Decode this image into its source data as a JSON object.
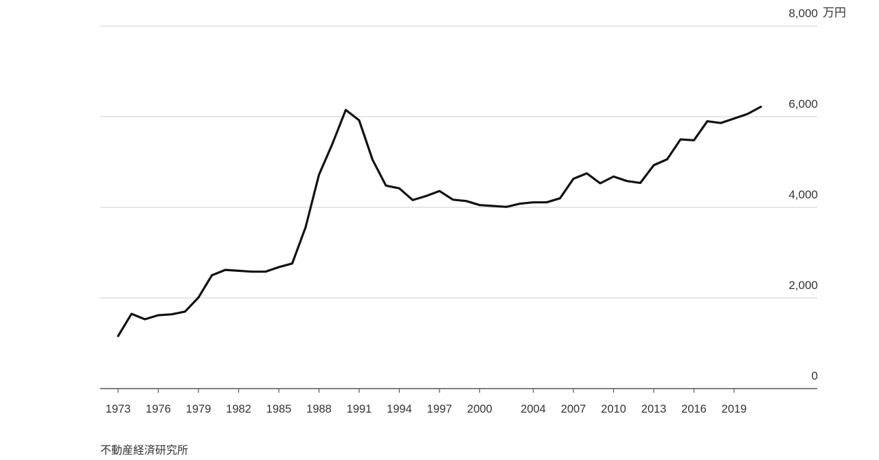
{
  "chart_data": {
    "type": "line",
    "unit_label": "万円",
    "source": "不動産経済研究所",
    "grid": true,
    "ylim": [
      0,
      8000
    ],
    "y_ticks": [
      {
        "value": 0,
        "label": "0"
      },
      {
        "value": 2000,
        "label": "2,000"
      },
      {
        "value": 4000,
        "label": "4,000"
      },
      {
        "value": 6000,
        "label": "6,000"
      },
      {
        "value": 8000,
        "label": "8,000"
      }
    ],
    "x_ticks": [
      {
        "value": 1973,
        "label": "1973"
      },
      {
        "value": 1976,
        "label": "1976"
      },
      {
        "value": 1979,
        "label": "1979"
      },
      {
        "value": 1982,
        "label": "1982"
      },
      {
        "value": 1985,
        "label": "1985"
      },
      {
        "value": 1988,
        "label": "1988"
      },
      {
        "value": 1991,
        "label": "1991"
      },
      {
        "value": 1994,
        "label": "1994"
      },
      {
        "value": 1997,
        "label": "1997"
      },
      {
        "value": 2000,
        "label": "2000"
      },
      {
        "value": 2004,
        "label": "2004"
      },
      {
        "value": 2007,
        "label": "2007"
      },
      {
        "value": 2010,
        "label": "2010"
      },
      {
        "value": 2013,
        "label": "2013"
      },
      {
        "value": 2016,
        "label": "2016"
      },
      {
        "value": 2019,
        "label": "2019"
      }
    ],
    "xlim": [
      1973,
      2021
    ],
    "x": [
      1973,
      1974,
      1975,
      1976,
      1977,
      1978,
      1979,
      1980,
      1981,
      1982,
      1983,
      1984,
      1985,
      1986,
      1987,
      1988,
      1989,
      1990,
      1991,
      1992,
      1993,
      1994,
      1995,
      1996,
      1997,
      1998,
      1999,
      2000,
      2001,
      2002,
      2003,
      2004,
      2005,
      2006,
      2007,
      2008,
      2009,
      2010,
      2011,
      2012,
      2013,
      2014,
      2015,
      2016,
      2017,
      2018,
      2019,
      2020,
      2021
    ],
    "values": [
      1160,
      1650,
      1530,
      1620,
      1640,
      1700,
      2010,
      2500,
      2620,
      2600,
      2580,
      2580,
      2680,
      2760,
      3560,
      4720,
      5400,
      6150,
      5920,
      5050,
      4480,
      4420,
      4160,
      4250,
      4360,
      4170,
      4140,
      4050,
      4030,
      4010,
      4080,
      4110,
      4110,
      4200,
      4630,
      4750,
      4530,
      4680,
      4580,
      4540,
      4930,
      5060,
      5500,
      5480,
      5900,
      5860,
      5960,
      6060,
      6220
    ]
  }
}
